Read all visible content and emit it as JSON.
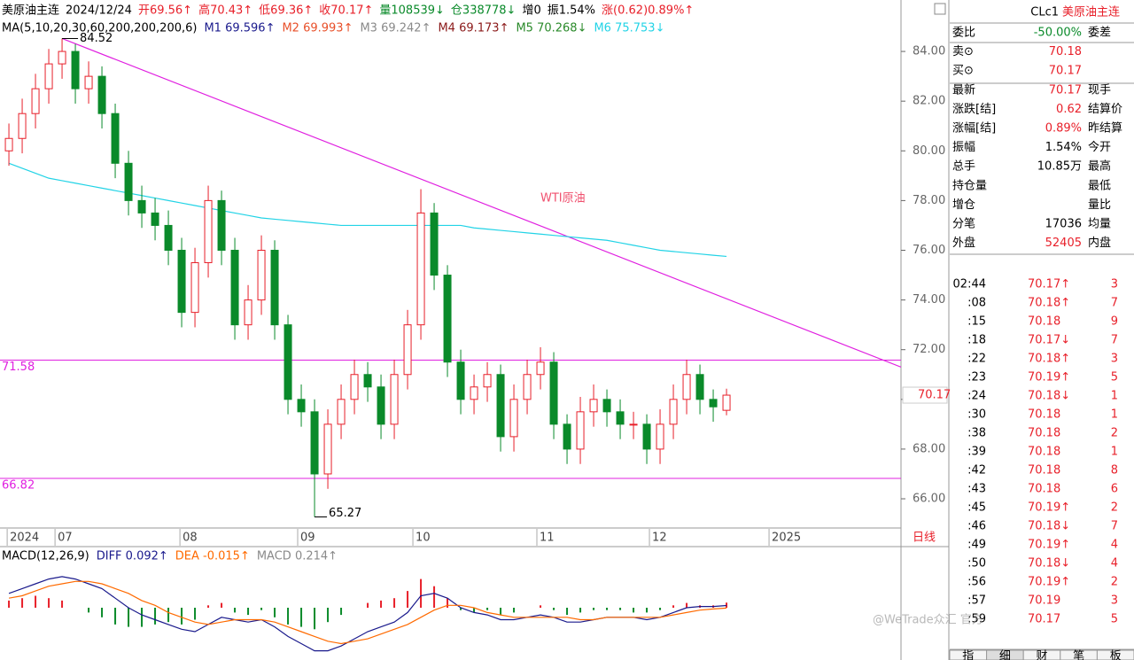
{
  "header": {
    "items": [
      {
        "text": "美原油主连",
        "color": "#000000"
      },
      {
        "text": "2024/12/24",
        "color": "#000000"
      },
      {
        "text": "开69.56↑",
        "color": "#e8202a"
      },
      {
        "text": "高70.43↑",
        "color": "#e8202a"
      },
      {
        "text": "低69.36↑",
        "color": "#e8202a"
      },
      {
        "text": "收70.17↑",
        "color": "#e8202a"
      },
      {
        "text": "量108539↓",
        "color": "#0a8a2a"
      },
      {
        "text": "仓338778↓",
        "color": "#0a8a2a"
      },
      {
        "text": "增0",
        "color": "#000000"
      },
      {
        "text": "振1.54%",
        "color": "#000000"
      },
      {
        "text": "涨(0.62)0.89%↑",
        "color": "#e8202a"
      }
    ]
  },
  "chart_data": [
    {
      "type": "candlestick",
      "title": "MA(5,10,20,30,60,200,200,200,6)",
      "annotation": "WTI原油",
      "up_color": "#e8202a",
      "down_color": "#0a8a2a",
      "open": [
        80.0,
        80.5,
        81.5,
        82.5,
        83.5,
        84.0,
        82.5,
        83.0,
        81.5,
        79.5,
        78.0,
        77.5,
        77.0,
        76.0,
        73.5,
        75.5,
        78.0,
        76.0,
        73.0,
        74.0,
        76.0,
        73.0,
        70.0,
        69.5,
        67.0,
        69.0,
        70.0,
        71.0,
        70.5,
        69.0,
        71.0,
        73.0,
        77.5,
        75.0,
        71.5,
        70.0,
        70.5,
        71.0,
        68.5,
        70.0,
        71.0,
        71.5,
        69.0,
        68.0,
        69.5,
        70.0,
        69.5,
        69.0,
        69.0,
        68.0,
        69.0,
        70.0,
        71.0,
        70.0,
        69.56
      ],
      "high": [
        81.1,
        82.1,
        83.1,
        84.1,
        84.52,
        84.3,
        83.6,
        83.4,
        81.9,
        80.0,
        78.6,
        78.1,
        77.6,
        76.5,
        76.1,
        78.6,
        78.4,
        76.5,
        74.6,
        76.6,
        76.4,
        73.4,
        70.6,
        70.0,
        69.6,
        70.6,
        71.6,
        71.5,
        71.0,
        71.6,
        73.6,
        78.46,
        77.9,
        75.4,
        72.0,
        71.0,
        71.5,
        71.4,
        70.6,
        71.6,
        72.1,
        71.9,
        69.4,
        70.1,
        70.6,
        70.4,
        70.0,
        69.5,
        69.4,
        69.6,
        70.6,
        71.6,
        71.4,
        70.4,
        70.43
      ],
      "low": [
        79.4,
        79.9,
        80.9,
        81.9,
        82.9,
        81.9,
        81.9,
        80.9,
        78.9,
        77.4,
        76.9,
        76.4,
        75.4,
        72.9,
        72.9,
        74.9,
        75.4,
        72.4,
        72.4,
        73.4,
        72.4,
        69.4,
        68.9,
        65.27,
        66.4,
        68.4,
        69.4,
        69.9,
        68.4,
        68.4,
        70.4,
        72.4,
        74.4,
        70.9,
        69.4,
        69.4,
        69.9,
        67.9,
        67.9,
        69.4,
        70.4,
        68.4,
        67.4,
        67.4,
        68.9,
        68.9,
        68.4,
        68.4,
        67.4,
        67.4,
        68.4,
        69.4,
        69.4,
        69.1,
        69.36
      ],
      "close": [
        80.5,
        81.5,
        82.5,
        83.5,
        84.0,
        82.5,
        83.0,
        81.5,
        79.5,
        78.0,
        77.5,
        77.0,
        76.0,
        73.5,
        75.5,
        78.0,
        76.0,
        73.0,
        74.0,
        76.0,
        73.0,
        70.0,
        69.5,
        67.0,
        69.0,
        70.0,
        71.0,
        70.5,
        69.0,
        71.0,
        73.0,
        77.5,
        75.0,
        71.5,
        70.0,
        70.5,
        71.0,
        68.5,
        70.0,
        71.0,
        71.5,
        69.0,
        68.0,
        69.5,
        70.0,
        69.5,
        69.0,
        69.0,
        68.0,
        69.0,
        70.0,
        71.0,
        70.0,
        69.7,
        70.17
      ],
      "series": [
        {
          "name": "M1 69.596↑",
          "color": "#1a1a8c"
        },
        {
          "name": "M2 69.993↑",
          "color": "#e8502a"
        },
        {
          "name": "M3 69.242↑",
          "color": "#8a8a8a"
        },
        {
          "name": "M4 69.173↑",
          "color": "#8b1a1a"
        },
        {
          "name": "M5 70.268↓",
          "color": "#2a8a2a"
        },
        {
          "name": "M6 75.753↓",
          "color": "#22d3e6",
          "values": [
            79.5,
            79.3,
            79.1,
            78.9,
            78.8,
            78.7,
            78.6,
            78.5,
            78.4,
            78.3,
            78.2,
            78.1,
            78.0,
            77.9,
            77.8,
            77.7,
            77.6,
            77.5,
            77.4,
            77.3,
            77.25,
            77.2,
            77.15,
            77.1,
            77.05,
            77.0,
            77.0,
            77.0,
            77.0,
            77.0,
            77.0,
            77.0,
            77.0,
            77.0,
            77.0,
            76.9,
            76.85,
            76.8,
            76.75,
            76.7,
            76.65,
            76.6,
            76.55,
            76.5,
            76.45,
            76.4,
            76.3,
            76.2,
            76.1,
            76.0,
            75.95,
            75.9,
            75.85,
            75.8,
            75.753
          ]
        }
      ],
      "levels": [
        71.58,
        66.82
      ],
      "level_color": "#e020e0",
      "trendline": {
        "x": [
          4,
          67.13
        ],
        "y": [
          84.52,
          71.3
        ],
        "color": "#e020e0"
      },
      "xlim": [
        -0.67,
        67.13
      ],
      "xticks": [
        {
          "value": -0.13,
          "label": "2024"
        },
        {
          "value": 3.47,
          "label": "07"
        },
        {
          "value": 12.87,
          "label": "08"
        },
        {
          "value": 21.73,
          "label": "09"
        },
        {
          "value": 30.4,
          "label": "10"
        },
        {
          "value": 39.73,
          "label": "11"
        },
        {
          "value": 48.2,
          "label": "12"
        },
        {
          "value": 57.2,
          "label": "2025"
        }
      ],
      "ylim": [
        64.86,
        86.07
      ],
      "yticks": [
        {
          "value": 66,
          "label": "66.00"
        },
        {
          "value": 68,
          "label": "68.00"
        },
        {
          "value": 70,
          "label": "70.00"
        },
        {
          "value": 72,
          "label": "72.00"
        },
        {
          "value": 74,
          "label": "74.00"
        },
        {
          "value": 76,
          "label": "76.00"
        },
        {
          "value": 78,
          "label": "78.00"
        },
        {
          "value": 80,
          "label": "80.00"
        },
        {
          "value": 82,
          "label": "82.00"
        },
        {
          "value": 84,
          "label": "84.00"
        }
      ],
      "period": "日线"
    },
    {
      "type": "macd",
      "title": "MACD(12,26,9)",
      "xlim": [
        -0.67,
        67.13
      ],
      "ylim": [
        -2,
        2
      ],
      "series": [
        {
          "name": "DIFF 0.092↑",
          "color": "#1a1a8c",
          "values": [
            0.6,
            0.8,
            1.0,
            1.2,
            1.3,
            1.2,
            1.0,
            0.8,
            0.4,
            0.0,
            -0.3,
            -0.5,
            -0.7,
            -0.9,
            -1.0,
            -0.7,
            -0.4,
            -0.5,
            -0.6,
            -0.5,
            -0.8,
            -1.2,
            -1.5,
            -1.8,
            -1.8,
            -1.6,
            -1.3,
            -1.0,
            -0.8,
            -0.6,
            -0.2,
            0.5,
            0.6,
            0.4,
            0.0,
            -0.2,
            -0.3,
            -0.5,
            -0.5,
            -0.4,
            -0.3,
            -0.4,
            -0.6,
            -0.6,
            -0.5,
            -0.4,
            -0.4,
            -0.4,
            -0.5,
            -0.4,
            -0.2,
            0.0,
            0.05,
            0.05,
            0.092
          ]
        },
        {
          "name": "DEA -0.015↑",
          "color": "#ff6a00",
          "values": [
            0.4,
            0.5,
            0.7,
            0.9,
            1.0,
            1.1,
            1.1,
            1.0,
            0.8,
            0.6,
            0.3,
            0.1,
            -0.2,
            -0.4,
            -0.6,
            -0.7,
            -0.6,
            -0.5,
            -0.5,
            -0.5,
            -0.6,
            -0.8,
            -1.0,
            -1.2,
            -1.4,
            -1.5,
            -1.4,
            -1.3,
            -1.1,
            -0.9,
            -0.7,
            -0.4,
            -0.1,
            0.1,
            0.1,
            0.0,
            -0.2,
            -0.3,
            -0.4,
            -0.4,
            -0.4,
            -0.4,
            -0.4,
            -0.5,
            -0.5,
            -0.4,
            -0.4,
            -0.4,
            -0.4,
            -0.4,
            -0.3,
            -0.2,
            -0.1,
            -0.05,
            -0.015
          ]
        }
      ],
      "histogram": {
        "name": "MACD 0.214↑",
        "color": "#8a8a8a",
        "up_color": "#e8202a",
        "down_color": "#0a8a2a",
        "values": [
          0.3,
          0.4,
          0.5,
          0.4,
          0.3,
          0.0,
          -0.2,
          -0.4,
          -0.7,
          -0.8,
          -0.8,
          -0.7,
          -0.6,
          -0.7,
          -0.5,
          0.1,
          0.2,
          -0.2,
          -0.3,
          -0.1,
          -0.4,
          -0.7,
          -0.8,
          -0.9,
          -0.6,
          -0.3,
          0.0,
          0.2,
          0.3,
          0.4,
          0.7,
          1.2,
          0.9,
          0.4,
          -0.1,
          -0.2,
          -0.1,
          -0.3,
          -0.2,
          0.0,
          0.1,
          -0.1,
          -0.3,
          -0.2,
          -0.1,
          -0.1,
          -0.1,
          -0.2,
          -0.2,
          -0.1,
          0.1,
          0.2,
          0.1,
          0.1,
          0.214
        ]
      }
    }
  ],
  "quote": {
    "code": "CLc1",
    "name": "美原油主连",
    "rows": [
      {
        "label": "委比",
        "value": "-50.00%",
        "right": "委差",
        "color": "#0a8a2a"
      },
      {
        "label": "卖⊙",
        "value": "70.18",
        "color": "#e8202a"
      },
      {
        "label": "买⊙",
        "value": "70.17",
        "color": "#e8202a"
      },
      {
        "label": "最新",
        "value": "70.17",
        "right": "现手",
        "color": "#e8202a"
      },
      {
        "label": "涨跌[结]",
        "value": "0.62",
        "right": "结算价",
        "color": "#e8202a"
      },
      {
        "label": "涨幅[结]",
        "value": "0.89%",
        "right": "昨结算",
        "color": "#e8202a"
      },
      {
        "label": "振幅",
        "value": "1.54%",
        "right": "今开",
        "color": "#000000"
      },
      {
        "label": "总手",
        "value": "10.85万",
        "right": "最高",
        "color": "#000000"
      },
      {
        "label": "持仓量",
        "right": "最低"
      },
      {
        "label": "增仓",
        "right": "量比"
      },
      {
        "label": "分笔",
        "value": "17036",
        "right": "均量",
        "color": "#000000"
      },
      {
        "label": "外盘",
        "value": "52405",
        "right": "内盘",
        "color": "#e8202a"
      }
    ],
    "trades": [
      {
        "time": "02:44",
        "price": "70.17↑",
        "volume": "3"
      },
      {
        "time": ":08",
        "price": "70.18↑",
        "volume": "7"
      },
      {
        "time": ":15",
        "price": "70.18",
        "volume": "9"
      },
      {
        "time": ":18",
        "price": "70.17↓",
        "volume": "7"
      },
      {
        "time": ":22",
        "price": "70.18↑",
        "volume": "3"
      },
      {
        "time": ":23",
        "price": "70.19↑",
        "volume": "5"
      },
      {
        "time": ":24",
        "price": "70.18↓",
        "volume": "1"
      },
      {
        "time": ":30",
        "price": "70.18",
        "volume": "1"
      },
      {
        "time": ":38",
        "price": "70.18",
        "volume": "2"
      },
      {
        "time": ":39",
        "price": "70.18",
        "volume": "1"
      },
      {
        "time": ":42",
        "price": "70.18",
        "volume": "8"
      },
      {
        "time": ":43",
        "price": "70.18",
        "volume": "6"
      },
      {
        "time": ":45",
        "price": "70.19↑",
        "volume": "2"
      },
      {
        "time": ":46",
        "price": "70.18↓",
        "volume": "7"
      },
      {
        "time": ":49",
        "price": "70.19↑",
        "volume": "4"
      },
      {
        "time": ":50",
        "price": "70.18↓",
        "volume": "4"
      },
      {
        "time": ":56",
        "price": "70.19↑",
        "volume": "2"
      },
      {
        "time": ":57",
        "price": "70.19",
        "volume": "3"
      },
      {
        "time": ":59",
        "price": "70.17",
        "volume": "5"
      }
    ],
    "tabs": [
      "指",
      "细",
      "财",
      "笔",
      "板"
    ]
  },
  "watermark": "@WeTrade众汇 官方"
}
